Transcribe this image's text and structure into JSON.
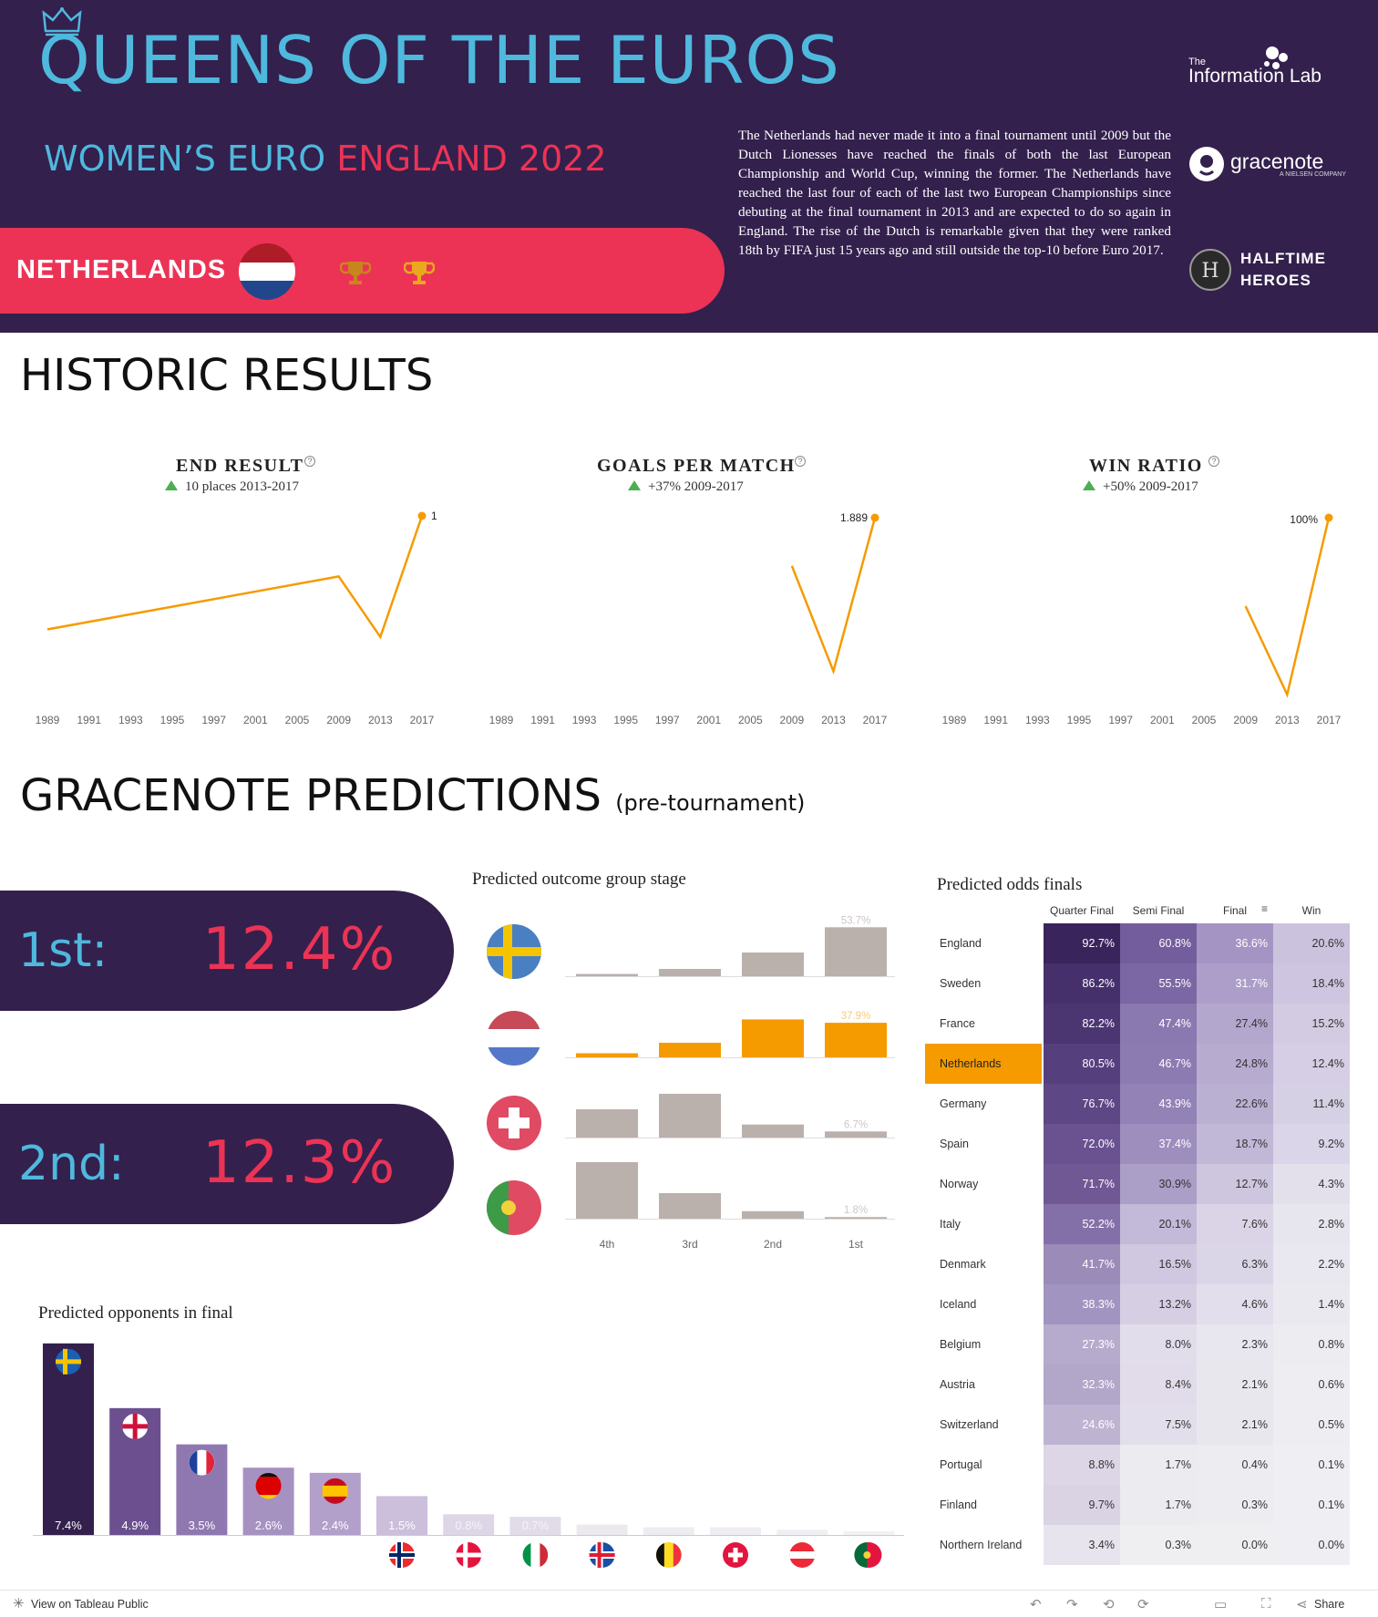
{
  "header": {
    "title": "QUEENS OF THE EUROS",
    "subtitle_a": "WOMEN’S EURO",
    "subtitle_b": "ENGLAND 2022",
    "team": "NETHERLANDS",
    "intro": "The Netherlands had never made it into a final tournament until 2009 but the Dutch Lionesses have reached the finals of both the last European Championship and World Cup, winning the former. The Netherlands have reached the last four of each of the last two European Championships since debuting at the final tournament in 2013 and are expected to do so again in England. The rise of the Dutch is remarkable given that they were ranked 18th by FIFA just 15 years ago and still outside the top-10 before Euro 2017.",
    "logos": {
      "infolab_small": "The",
      "infolab_big": "Information Lab",
      "gracenote": "gracenote",
      "gracenote_sub": "A NIELSEN COMPANY",
      "halftime_1": "HALFTIME",
      "halftime_2": "HEROES"
    },
    "colors": {
      "navy": "#33204d",
      "blue": "#4fb8dd",
      "pink": "#ec3355",
      "orange": "#f59b00",
      "gold": "#d99a1e"
    }
  },
  "historic": {
    "title": "HISTORIC RESULTS"
  },
  "predictions": {
    "title": "GRACENOTE PREDICTIONS",
    "title_note": "(pre-tournament)",
    "first_label": "1st:",
    "first_value": "12.4%",
    "second_label": "2nd:",
    "second_value": "12.3%",
    "group_title": "Predicted outcome group stage",
    "opponents_title": "Predicted opponents in final",
    "odds_title": "Predicted odds finals"
  },
  "chart_data": [
    {
      "type": "line",
      "title": "END RESULT",
      "delta": "10 places 2013-2017",
      "x": [
        "1989",
        "1991",
        "1993",
        "1995",
        "1997",
        "2001",
        "2005",
        "2009",
        "2013",
        "2017"
      ],
      "values": [
        null,
        null,
        null,
        null,
        null,
        null,
        null,
        3,
        11,
        1
      ],
      "series_note": "line from 1989 through 2009 on a faint path",
      "end_label": "1",
      "inverted_axis": true,
      "trend_points": [
        [
          0,
          8.5
        ],
        [
          2,
          7.5
        ],
        [
          7,
          5.0
        ],
        [
          8,
          9.0
        ],
        [
          9,
          1.0
        ]
      ]
    },
    {
      "type": "line",
      "title": "GOALS PER MATCH",
      "delta": "+37% 2009-2017",
      "x": [
        "1989",
        "1991",
        "1993",
        "1995",
        "1997",
        "2001",
        "2005",
        "2009",
        "2013",
        "2017"
      ],
      "values": [
        null,
        null,
        null,
        null,
        null,
        null,
        null,
        1.375,
        0.25,
        1.889
      ],
      "end_label": "1.889"
    },
    {
      "type": "line",
      "title": "WIN RATIO",
      "delta": "+50% 2009-2017",
      "x": [
        "1989",
        "1991",
        "1993",
        "1995",
        "1997",
        "2001",
        "2005",
        "2009",
        "2013",
        "2017"
      ],
      "values": [
        null,
        null,
        null,
        null,
        null,
        null,
        null,
        50,
        0,
        100
      ],
      "end_label": "100%"
    },
    {
      "type": "bar",
      "title": "Predicted outcome group stage",
      "categories": [
        "4th",
        "3rd",
        "2nd",
        "1st"
      ],
      "series": [
        {
          "name": "Sweden",
          "values": [
            2.5,
            8.0,
            26.0,
            53.7
          ],
          "label": "53.7%",
          "flag": "sweden"
        },
        {
          "name": "Netherlands",
          "values": [
            4.5,
            16.0,
            41.6,
            37.9
          ],
          "label": "37.9%",
          "flag": "netherlands"
        },
        {
          "name": "Switzerland",
          "values": [
            31.0,
            48.0,
            14.3,
            6.7
          ],
          "label": "6.7%",
          "flag": "switzerland"
        },
        {
          "name": "Portugal",
          "values": [
            62.0,
            28.0,
            8.2,
            1.8
          ],
          "label": "1.8%",
          "flag": "portugal"
        }
      ],
      "ylim": [
        0,
        60
      ]
    },
    {
      "type": "bar",
      "title": "Predicted opponents in final",
      "categories": [
        "Sweden",
        "England",
        "France",
        "Germany",
        "Spain",
        "Norway",
        "Denmark",
        "Italy",
        "Iceland",
        "Belgium",
        "Switzerland",
        "Austria",
        "Portugal"
      ],
      "values": [
        7.4,
        4.9,
        3.5,
        2.6,
        2.4,
        1.5,
        0.8,
        0.7,
        0.4,
        0.3,
        0.3,
        0.2,
        0.1
      ],
      "labels": [
        "7.4%",
        "4.9%",
        "3.5%",
        "2.6%",
        "2.4%",
        "1.5%",
        "0.8%",
        "0.7%",
        "",
        "",
        "",
        "",
        ""
      ],
      "ylim": [
        0,
        7.5
      ]
    },
    {
      "type": "table",
      "title": "Predicted odds finals",
      "columns": [
        "Quarter Final",
        "Semi Final",
        "Final",
        "Win"
      ],
      "rows": [
        {
          "team": "England",
          "values": [
            "92.7%",
            "60.8%",
            "36.6%",
            "20.6%"
          ]
        },
        {
          "team": "Sweden",
          "values": [
            "86.2%",
            "55.5%",
            "31.7%",
            "18.4%"
          ]
        },
        {
          "team": "France",
          "values": [
            "82.2%",
            "47.4%",
            "27.4%",
            "15.2%"
          ]
        },
        {
          "team": "Netherlands",
          "values": [
            "80.5%",
            "46.7%",
            "24.8%",
            "12.4%"
          ],
          "highlight": true
        },
        {
          "team": "Germany",
          "values": [
            "76.7%",
            "43.9%",
            "22.6%",
            "11.4%"
          ]
        },
        {
          "team": "Spain",
          "values": [
            "72.0%",
            "37.4%",
            "18.7%",
            "9.2%"
          ]
        },
        {
          "team": "Norway",
          "values": [
            "71.7%",
            "30.9%",
            "12.7%",
            "4.3%"
          ]
        },
        {
          "team": "Italy",
          "values": [
            "52.2%",
            "20.1%",
            "7.6%",
            "2.8%"
          ]
        },
        {
          "team": "Denmark",
          "values": [
            "41.7%",
            "16.5%",
            "6.3%",
            "2.2%"
          ]
        },
        {
          "team": "Iceland",
          "values": [
            "38.3%",
            "13.2%",
            "4.6%",
            "1.4%"
          ]
        },
        {
          "team": "Belgium",
          "values": [
            "27.3%",
            "8.0%",
            "2.3%",
            "0.8%"
          ]
        },
        {
          "team": "Austria",
          "values": [
            "32.3%",
            "8.4%",
            "2.1%",
            "0.6%"
          ]
        },
        {
          "team": "Switzerland",
          "values": [
            "24.6%",
            "7.5%",
            "2.1%",
            "0.5%"
          ]
        },
        {
          "team": "Portugal",
          "values": [
            "8.8%",
            "1.7%",
            "0.4%",
            "0.1%"
          ]
        },
        {
          "team": "Finland",
          "values": [
            "9.7%",
            "1.7%",
            "0.3%",
            "0.1%"
          ]
        },
        {
          "team": "Northern Ireland",
          "values": [
            "3.4%",
            "0.3%",
            "0.0%",
            "0.0%"
          ]
        }
      ]
    }
  ],
  "footer": {
    "link": "View on Tableau Public",
    "share": "Share"
  }
}
